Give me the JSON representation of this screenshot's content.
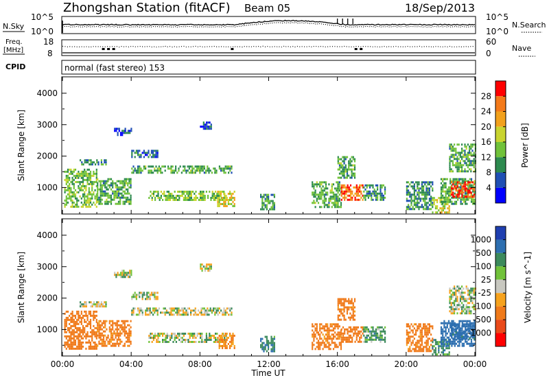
{
  "header": {
    "station_title": "Zhongshan Station (fitACF)",
    "beam_label": "Beam 05",
    "date_label": "18/Sep/2013"
  },
  "noise_panel": {
    "left_label": "N.Sky",
    "right_label": "N.Search",
    "left_ticks": [
      "10^5",
      "10^0"
    ],
    "right_ticks": [
      "10^5",
      "10^0"
    ]
  },
  "freq_panel": {
    "left_label_top": "Freq.",
    "left_label_bottom": "[MHz]",
    "right_label": "Nave",
    "left_ticks": [
      "18",
      "8"
    ],
    "right_ticks": [
      "60",
      "0"
    ]
  },
  "cpid_panel": {
    "label": "CPID",
    "program_text": "normal (fast stereo) 153"
  },
  "power_panel": {
    "ylabel": "Slant Range [km]",
    "yticks": [
      "4000",
      "3000",
      "2000",
      "1000"
    ],
    "colorbar_label": "Power [dB]",
    "colorbar_ticks": [
      "28",
      "24",
      "20",
      "16",
      "12",
      "8",
      "4"
    ],
    "colors": [
      "#0000ff",
      "#1f4fb4",
      "#2d8a4f",
      "#71c23a",
      "#c9d42f",
      "#f2a11c",
      "#f47a1a",
      "#ff0000"
    ]
  },
  "velocity_panel": {
    "ylabel": "Slant Range [km]",
    "yticks": [
      "4000",
      "3000",
      "2000",
      "1000"
    ],
    "colorbar_label": "Velocity [m s^-1]",
    "colorbar_ticks": [
      "1000",
      "500",
      "100",
      "25",
      "-25",
      "-100",
      "-500",
      "-1000"
    ],
    "colors": [
      "#1f3fb0",
      "#2d6fb0",
      "#3c8a5c",
      "#71c23a",
      "#c8c8c0",
      "#f6a21d",
      "#f07a1a",
      "#ea4a1a",
      "#ff0000"
    ]
  },
  "x_axis": {
    "ticks": [
      "00:00",
      "04:00",
      "08:00",
      "12:00",
      "16:00",
      "20:00",
      "00:00"
    ],
    "label": "Time UT"
  },
  "chart_data": [
    {
      "type": "heatmap",
      "title": "Power",
      "x_range_hours": [
        0,
        24
      ],
      "y_range_km": [
        180,
        4500
      ],
      "ylabel": "Slant Range [km]",
      "colorbar": {
        "label": "Power [dB]",
        "range": [
          0,
          30
        ]
      },
      "patches": [
        {
          "t": [
            0.1,
            2.0
          ],
          "r": [
            400,
            1600
          ],
          "value": 14
        },
        {
          "t": [
            2.0,
            4.0
          ],
          "r": [
            500,
            1300
          ],
          "value": 12
        },
        {
          "t": [
            1.0,
            2.5
          ],
          "r": [
            1750,
            1900
          ],
          "value": 10
        },
        {
          "t": [
            4.0,
            9.8
          ],
          "r": [
            1500,
            1700
          ],
          "value": 12
        },
        {
          "t": [
            4.0,
            5.5
          ],
          "r": [
            2000,
            2200
          ],
          "value": 8
        },
        {
          "t": [
            5.0,
            9.5
          ],
          "r": [
            600,
            900
          ],
          "value": 14
        },
        {
          "t": [
            9.0,
            10.0
          ],
          "r": [
            400,
            900
          ],
          "value": 18
        },
        {
          "t": [
            11.5,
            12.3
          ],
          "r": [
            300,
            800
          ],
          "value": 10
        },
        {
          "t": [
            14.5,
            16.2
          ],
          "r": [
            400,
            1200
          ],
          "value": 12
        },
        {
          "t": [
            16.2,
            17.5
          ],
          "r": [
            600,
            1100
          ],
          "value": 26
        },
        {
          "t": [
            16.0,
            17.0
          ],
          "r": [
            1300,
            2000
          ],
          "value": 12
        },
        {
          "t": [
            17.5,
            18.8
          ],
          "r": [
            600,
            1100
          ],
          "value": 10
        },
        {
          "t": [
            20.0,
            21.5
          ],
          "r": [
            300,
            1200
          ],
          "value": 10
        },
        {
          "t": [
            21.5,
            22.5
          ],
          "r": [
            200,
            700
          ],
          "value": 18
        },
        {
          "t": [
            22.0,
            24.0
          ],
          "r": [
            500,
            1300
          ],
          "value": 12
        },
        {
          "t": [
            22.6,
            24.0
          ],
          "r": [
            700,
            1200
          ],
          "value": 28
        },
        {
          "t": [
            22.5,
            24.0
          ],
          "r": [
            1500,
            2400
          ],
          "value": 12
        },
        {
          "t": [
            3.0,
            4.0
          ],
          "r": [
            2700,
            2900
          ],
          "value": 6
        },
        {
          "t": [
            8.0,
            8.7
          ],
          "r": [
            2900,
            3100
          ],
          "value": 6
        }
      ]
    },
    {
      "type": "heatmap",
      "title": "Velocity",
      "x_range_hours": [
        0,
        24
      ],
      "y_range_km": [
        180,
        4500
      ],
      "ylabel": "Slant Range [km]",
      "colorbar": {
        "label": "Velocity [m s^-1]",
        "range": [
          -1000,
          1000
        ]
      },
      "patches": [
        {
          "t": [
            0.1,
            2.0
          ],
          "r": [
            400,
            1600
          ],
          "value": -200
        },
        {
          "t": [
            2.0,
            4.0
          ],
          "r": [
            500,
            1300
          ],
          "value": -150
        },
        {
          "t": [
            1.0,
            2.5
          ],
          "r": [
            1750,
            1900
          ],
          "value": 0
        },
        {
          "t": [
            4.0,
            9.8
          ],
          "r": [
            1500,
            1700
          ],
          "value": 0
        },
        {
          "t": [
            4.0,
            5.5
          ],
          "r": [
            2000,
            2200
          ],
          "value": 0
        },
        {
          "t": [
            5.0,
            9.5
          ],
          "r": [
            600,
            900
          ],
          "value": 0
        },
        {
          "t": [
            9.0,
            10.0
          ],
          "r": [
            400,
            900
          ],
          "value": -120
        },
        {
          "t": [
            11.5,
            12.3
          ],
          "r": [
            300,
            800
          ],
          "value": 80
        },
        {
          "t": [
            14.5,
            16.2
          ],
          "r": [
            400,
            1200
          ],
          "value": -150
        },
        {
          "t": [
            16.2,
            17.5
          ],
          "r": [
            600,
            1100
          ],
          "value": -200
        },
        {
          "t": [
            16.0,
            17.0
          ],
          "r": [
            1300,
            2000
          ],
          "value": -150
        },
        {
          "t": [
            17.5,
            18.8
          ],
          "r": [
            600,
            1100
          ],
          "value": 50
        },
        {
          "t": [
            20.0,
            21.5
          ],
          "r": [
            300,
            1200
          ],
          "value": -150
        },
        {
          "t": [
            21.5,
            22.5
          ],
          "r": [
            200,
            700
          ],
          "value": 60
        },
        {
          "t": [
            22.0,
            24.0
          ],
          "r": [
            500,
            1300
          ],
          "value": 200
        },
        {
          "t": [
            22.6,
            24.0
          ],
          "r": [
            700,
            1200
          ],
          "value": 150
        },
        {
          "t": [
            22.5,
            24.0
          ],
          "r": [
            1500,
            2400
          ],
          "value": 0
        },
        {
          "t": [
            3.0,
            4.0
          ],
          "r": [
            2700,
            2900
          ],
          "value": 0
        },
        {
          "t": [
            8.0,
            8.7
          ],
          "r": [
            2900,
            3100
          ],
          "value": 0
        }
      ]
    }
  ]
}
